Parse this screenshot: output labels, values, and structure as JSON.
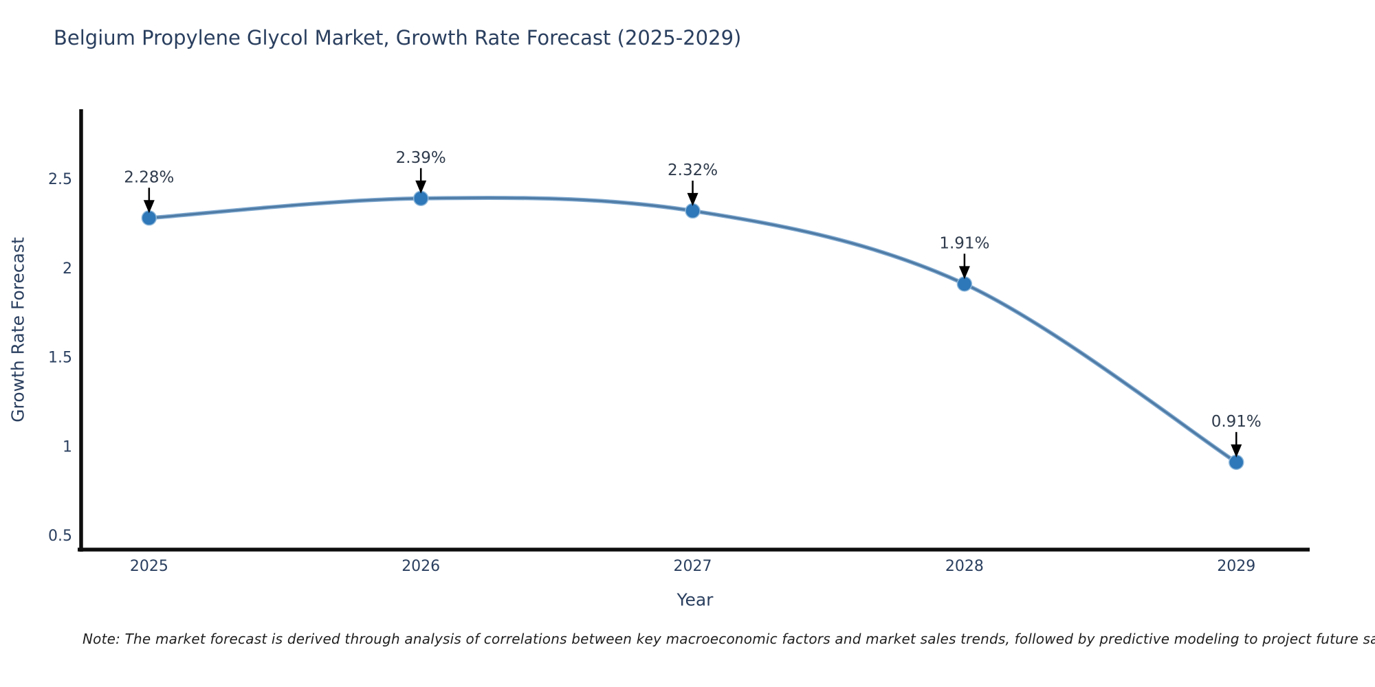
{
  "header": {
    "title": "Belgium Propylene Glycol Market, Growth Rate Forecast (2025-2029)"
  },
  "footer": {
    "note": "Note: The market forecast is derived through analysis of correlations between key macroeconomic factors and market sales trends, followed by predictive modeling to project future sales"
  },
  "chart_data": {
    "type": "line",
    "title": "Belgium Propylene Glycol Market, Growth Rate Forecast (2025-2029)",
    "xlabel": "Year",
    "ylabel": "Growth Rate Forecast",
    "x": [
      2025,
      2026,
      2027,
      2028,
      2029
    ],
    "values": [
      2.28,
      2.39,
      2.32,
      1.91,
      0.91
    ],
    "point_labels": [
      "2.28%",
      "2.39%",
      "2.32%",
      "1.91%",
      "0.91%"
    ],
    "xticks": [
      "2025",
      "2026",
      "2027",
      "2028",
      "2029"
    ],
    "yticks": [
      0.5,
      1,
      1.5,
      2,
      2.5
    ],
    "ytick_labels": [
      "0.5",
      "1",
      "1.5",
      "2",
      "2.5"
    ],
    "xlim": [
      2024.75,
      2029.27
    ],
    "ylim": [
      0.42,
      2.89
    ],
    "grid": false,
    "legend": "none",
    "line_shape": "spline",
    "colors": {
      "line_outer": "#7fa8cf",
      "line_core": "#4d7aa4",
      "marker_fill": "#2e77b8",
      "marker_ring": "#8fb8da",
      "annotation_arrow": "#000000",
      "annotation_text": "#2f3b4c",
      "tick_text": "#2a3f5f",
      "axis_spine": "#0d0d0d"
    }
  }
}
